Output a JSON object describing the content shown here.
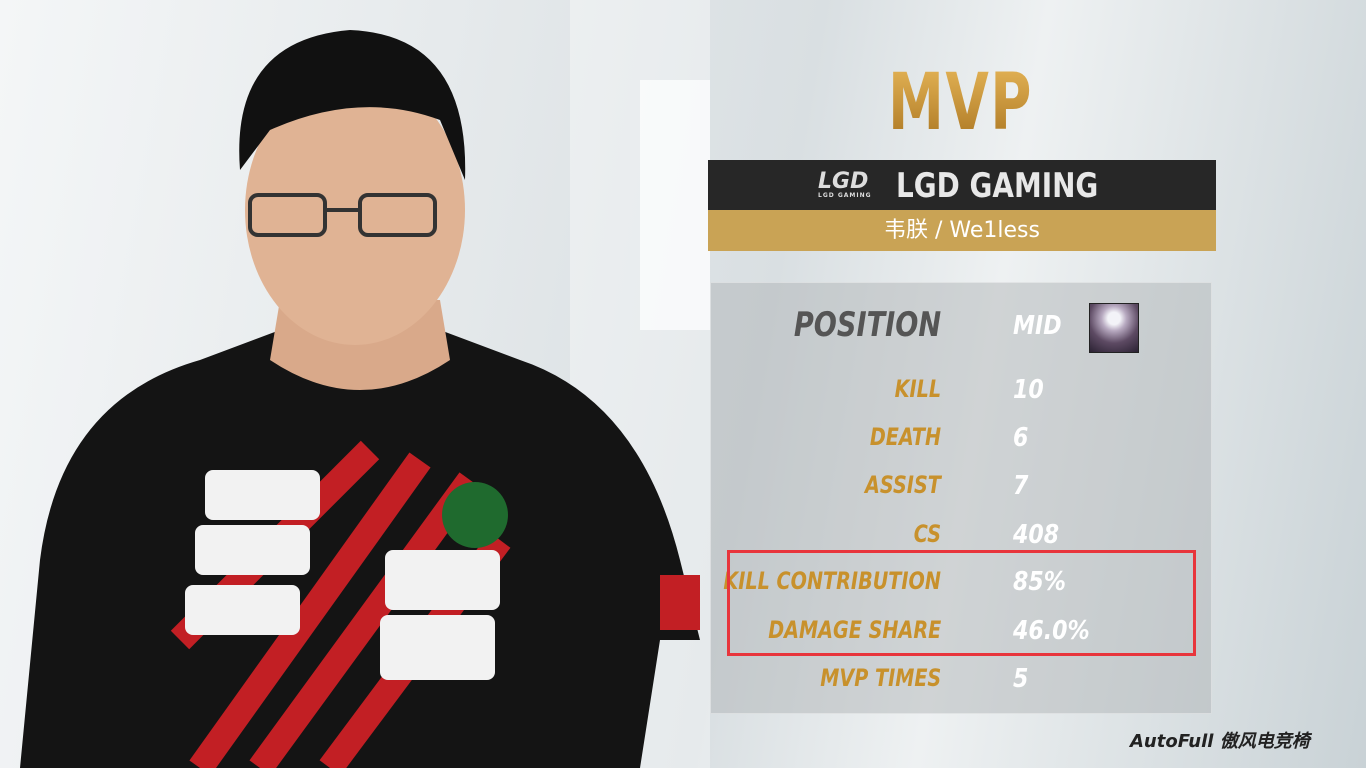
{
  "title": "MVP",
  "team": {
    "logo_text": "LGD",
    "logo_sub": "LGD GAMING",
    "name": "LGD GAMING"
  },
  "player": {
    "name": "韦朕 / We1less"
  },
  "position": {
    "label": "POSITION",
    "value": "MID",
    "champion_icon": "champion-portrait-icon"
  },
  "stats": [
    {
      "label": "KILL",
      "value": "10"
    },
    {
      "label": "DEATH",
      "value": "6"
    },
    {
      "label": "ASSIST",
      "value": "7"
    },
    {
      "label": "CS",
      "value": "408"
    },
    {
      "label": "KILL CONTRIBUTION",
      "value": "85%"
    },
    {
      "label": "DAMAGE SHARE",
      "value": "46.0%"
    },
    {
      "label": "MVP TIMES",
      "value": "5"
    }
  ],
  "sponsor": "AutoFull 傲风电竞椅",
  "colors": {
    "gold": "#c8912c",
    "highlight": "#e8353c",
    "dark_bar": "#272727",
    "gold_bar": "#c9a355"
  }
}
